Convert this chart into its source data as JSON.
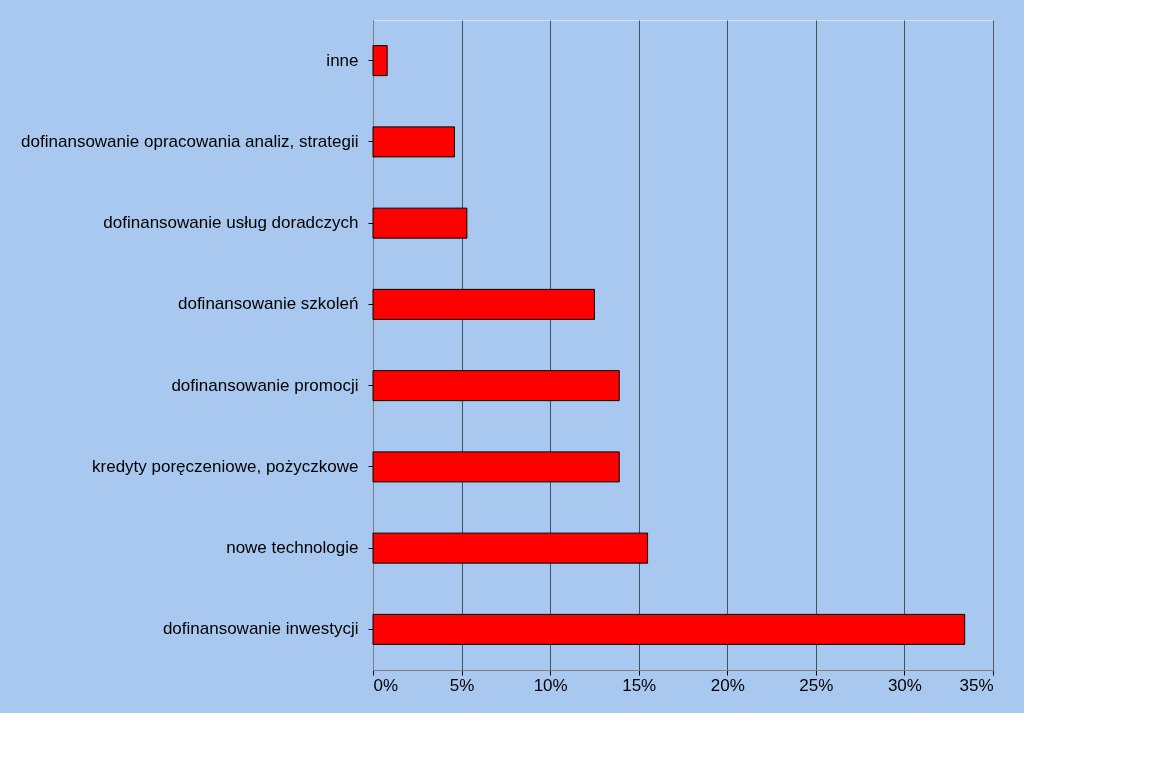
{
  "chart_data": {
    "type": "bar",
    "orientation": "horizontal",
    "categories": [
      "inne",
      "dofinansowanie opracowania analiz, strategii",
      "dofinansowanie usług doradczych",
      "dofinansowanie szkoleń",
      "dofinansowanie promocji",
      "kredyty poręczeniowe, pożyczkowe",
      "nowe technologie",
      "dofinansowanie inwestycji"
    ],
    "values": [
      0.8,
      4.6,
      5.3,
      12.5,
      13.9,
      13.9,
      15.5,
      33.4
    ],
    "color": "#ff0000",
    "xlim": [
      0,
      35
    ],
    "xticks": [
      {
        "value": 0,
        "label": "0%"
      },
      {
        "value": 5,
        "label": "5%"
      },
      {
        "value": 10,
        "label": "10%"
      },
      {
        "value": 15,
        "label": "15%"
      },
      {
        "value": 20,
        "label": "20%"
      },
      {
        "value": 25,
        "label": "25%"
      },
      {
        "value": 30,
        "label": "30%"
      },
      {
        "value": 35,
        "label": "35%"
      }
    ],
    "grid": "x"
  }
}
